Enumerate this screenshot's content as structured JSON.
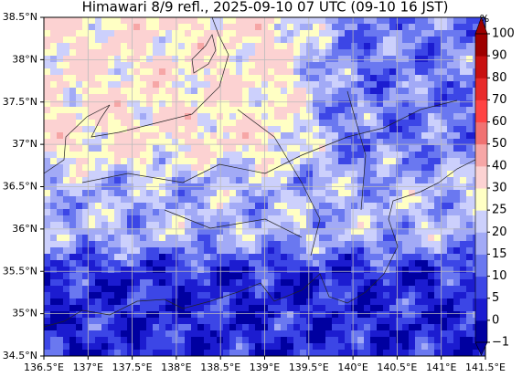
{
  "title": "Himawari 8/9 refl., 2025-09-10 07 UTC (09-10 16 JST)",
  "map": {
    "lonlim": [
      136.5,
      141.5
    ],
    "latlim": [
      34.5,
      38.5
    ],
    "grid": true,
    "lonticks": [
      {
        "value": 136.5,
        "label": "136.5°E"
      },
      {
        "value": 137,
        "label": "137°E"
      },
      {
        "value": 137.5,
        "label": "137.5°E"
      },
      {
        "value": 138,
        "label": "138°E"
      },
      {
        "value": 138.5,
        "label": "138.5°E"
      },
      {
        "value": 139,
        "label": "139°E"
      },
      {
        "value": 139.5,
        "label": "139.5°E"
      },
      {
        "value": 140,
        "label": "140°E"
      },
      {
        "value": 140.5,
        "label": "140.5°E"
      },
      {
        "value": 141,
        "label": "141°E"
      },
      {
        "value": 141.5,
        "label": "141.5°E"
      }
    ],
    "latticks": [
      {
        "value": 34.5,
        "label": "34.5°N"
      },
      {
        "value": 35,
        "label": "35°N"
      },
      {
        "value": 35.5,
        "label": "35.5°N"
      },
      {
        "value": 36,
        "label": "36°N"
      },
      {
        "value": 36.5,
        "label": "36.5°N"
      },
      {
        "value": 37,
        "label": "37°N"
      },
      {
        "value": 37.5,
        "label": "37.5°N"
      },
      {
        "value": 38,
        "label": "38°N"
      },
      {
        "value": 38.5,
        "label": "38.5°N"
      }
    ]
  },
  "colorbar": {
    "unit": "%",
    "ticks": [
      {
        "value": -1,
        "label": "−1"
      },
      0,
      5,
      10,
      15,
      20,
      25,
      30,
      40,
      50,
      60,
      70,
      80,
      90,
      100
    ],
    "colors": [
      "#0000a0",
      "#1c1cd0",
      "#3c46e6",
      "#6a78f0",
      "#a2aaf6",
      "#ccd0fc",
      "#ffffc4",
      "#fcd2d2",
      "#f6a6a6",
      "#f07272",
      "#ff4444",
      "#e82a2a",
      "#c81010",
      "#9e0000"
    ]
  }
}
